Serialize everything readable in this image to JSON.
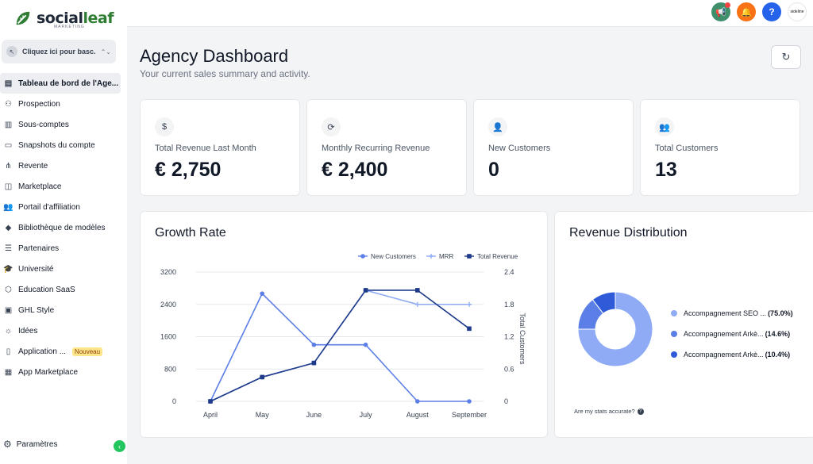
{
  "brand": {
    "name_part1": "social",
    "name_part2": "leaf",
    "tagline": "MARKETING"
  },
  "account_switcher": {
    "label": "Cliquez ici pour basc..."
  },
  "sidebar": {
    "items": [
      {
        "label": "Tableau de bord de l'Age...",
        "icon": "dashboard-icon",
        "active": true
      },
      {
        "label": "Prospection",
        "icon": "user-search-icon"
      },
      {
        "label": "Sous-comptes",
        "icon": "building-icon"
      },
      {
        "label": "Snapshots du compte",
        "icon": "image-icon"
      },
      {
        "label": "Revente",
        "icon": "split-icon"
      },
      {
        "label": "Marketplace",
        "icon": "shopping-bag-icon"
      },
      {
        "label": "Portail d'affiliation",
        "icon": "users-icon"
      },
      {
        "label": "Bibliothèque de modèles",
        "icon": "shapes-icon"
      },
      {
        "label": "Partenaires",
        "icon": "handshake-icon"
      },
      {
        "label": "Université",
        "icon": "graduation-cap-icon"
      },
      {
        "label": "Éducation SaaS",
        "icon": "box-icon"
      },
      {
        "label": "GHL Style",
        "icon": "shirt-icon"
      },
      {
        "label": "Idées",
        "icon": "lightbulb-icon"
      },
      {
        "label": "Application ...",
        "icon": "phone-icon",
        "badge": "Nouveau"
      },
      {
        "label": "App Marketplace",
        "icon": "grid-icon"
      }
    ],
    "settings_label": "Paramètres"
  },
  "topbar": {
    "avatar_text": "sideline"
  },
  "header": {
    "title": "Agency Dashboard",
    "subtitle": "Your current sales summary and activity."
  },
  "stats": [
    {
      "label": "Total Revenue Last Month",
      "value": "€ 2,750",
      "icon": "dollar-icon"
    },
    {
      "label": "Monthly Recurring Revenue",
      "value": "€ 2,400",
      "icon": "recurring-icon"
    },
    {
      "label": "New Customers",
      "value": "0",
      "icon": "user-plus-icon"
    },
    {
      "label": "Total Customers",
      "value": "13",
      "icon": "users-icon"
    }
  ],
  "growth": {
    "title": "Growth Rate"
  },
  "distribution": {
    "title": "Revenue Distribution",
    "accurate_text": "Are my stats accurate?"
  },
  "colors": {
    "new_customers": "#5b7fe6",
    "mrr": "#8fabf5",
    "total_revenue": "#1e3a8a",
    "slice1": "#8fabf5",
    "slice2": "#5b7fe6",
    "slice3": "#2f5bd8"
  },
  "chart_data": [
    {
      "type": "line",
      "categories": [
        "April",
        "May",
        "June",
        "July",
        "August",
        "September"
      ],
      "series": [
        {
          "name": "New Customers",
          "axis": "right",
          "values": [
            0,
            2.0,
            1.05,
            1.05,
            0,
            0
          ]
        },
        {
          "name": "MRR",
          "axis": "left",
          "values": [
            0,
            600,
            950,
            2750,
            2400,
            2400
          ]
        },
        {
          "name": "Total Revenue",
          "axis": "left",
          "values": [
            0,
            600,
            950,
            2750,
            2750,
            1800
          ]
        }
      ],
      "left_ticks": [
        "3200",
        "2400",
        "1600",
        "800",
        "0"
      ],
      "right_ticks": [
        "2.4",
        "1.8",
        "1.2",
        "0.6",
        "0"
      ],
      "ylim_left": [
        0,
        3200
      ],
      "ylim_right": [
        0,
        2.4
      ],
      "right_axis_label": "Total Customers",
      "legend_position": "top-right",
      "grid": "horizontal"
    },
    {
      "type": "pie",
      "donut": true,
      "slices": [
        {
          "label": "Accompagnement SEO ...",
          "pct_text": "(75.0%)",
          "value": 75.0
        },
        {
          "label": "Accompagnement Arkè...",
          "pct_text": "(14.6%)",
          "value": 14.6
        },
        {
          "label": "Accompagnement Arkè...",
          "pct_text": "(10.4%)",
          "value": 10.4
        }
      ],
      "legend_position": "right"
    }
  ]
}
